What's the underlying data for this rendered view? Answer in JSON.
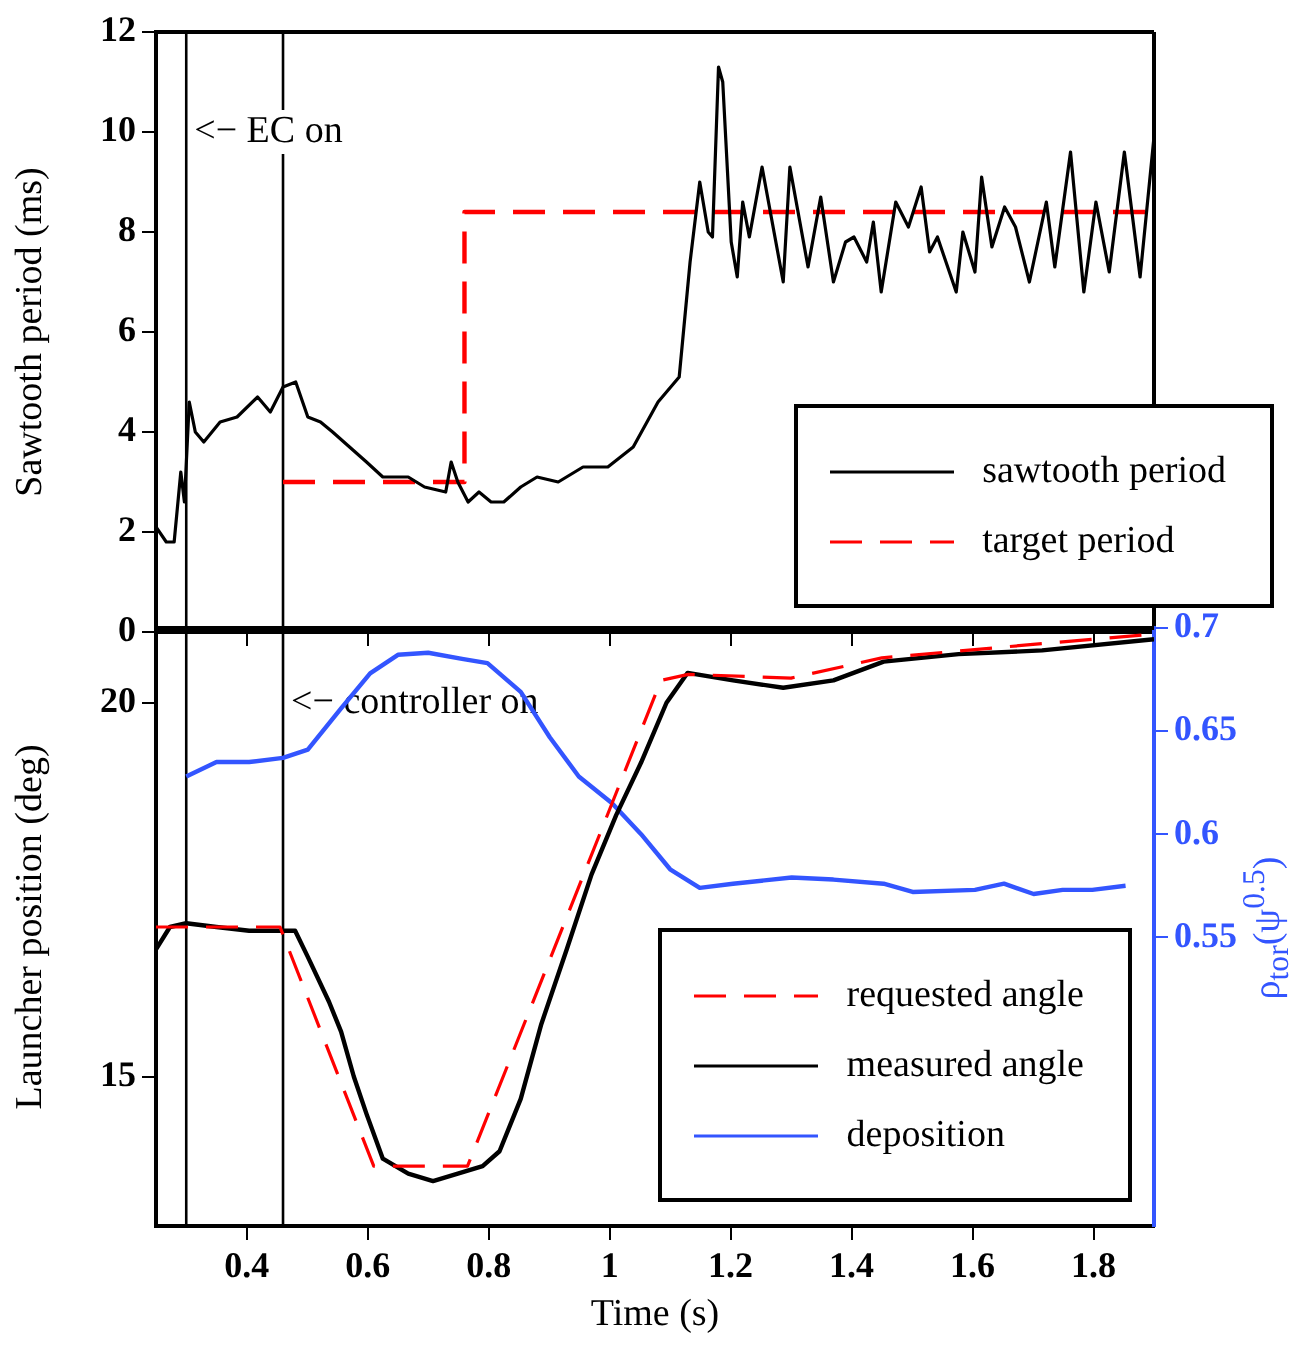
{
  "chart_data": [
    {
      "type": "line",
      "ylabel": "Sawtooth period (ms)",
      "xlim": [
        0.25,
        1.9
      ],
      "xticks": [
        0.4,
        0.6,
        0.8,
        1,
        1.2,
        1.4,
        1.6,
        1.8
      ],
      "ylim": [
        0,
        12
      ],
      "yticks": [
        0,
        2,
        4,
        6,
        8,
        10,
        12
      ],
      "tick_labels": "y",
      "grid": false,
      "legend": "bottom right",
      "marker": "none",
      "ref_lines": [
        {
          "axis": "x",
          "value": 0.3,
          "color": "#000000"
        },
        {
          "axis": "x",
          "value": 0.46,
          "color": "#000000"
        }
      ],
      "annotations": [
        {
          "text": "<− EC on",
          "x": 0.3,
          "y": 10
        }
      ],
      "series": [
        {
          "name": "sawtooth period",
          "color": "#000000",
          "line_style": "solid",
          "x": [
            0.25,
            0.267,
            0.28,
            0.291,
            0.297,
            0.305,
            0.315,
            0.329,
            0.356,
            0.384,
            0.418,
            0.439,
            0.46,
            0.481,
            0.501,
            0.522,
            0.542,
            0.57,
            0.598,
            0.625,
            0.667,
            0.694,
            0.729,
            0.738,
            0.749,
            0.766,
            0.784,
            0.804,
            0.825,
            0.853,
            0.88,
            0.915,
            0.956,
            0.997,
            1.039,
            1.08,
            1.115,
            1.133,
            1.149,
            1.163,
            1.17,
            1.18,
            1.187,
            1.201,
            1.211,
            1.22,
            1.231,
            1.252,
            1.287,
            1.298,
            1.328,
            1.349,
            1.37,
            1.39,
            1.404,
            1.425,
            1.436,
            1.449,
            1.473,
            1.494,
            1.515,
            1.529,
            1.542,
            1.573,
            1.584,
            1.604,
            1.615,
            1.632,
            1.653,
            1.671,
            1.694,
            1.722,
            1.736,
            1.762,
            1.784,
            1.804,
            1.826,
            1.851,
            1.877,
            1.9
          ],
          "values": [
            2.1,
            1.8,
            1.8,
            3.2,
            2.6,
            4.6,
            4.0,
            3.8,
            4.2,
            4.3,
            4.7,
            4.4,
            4.9,
            5.0,
            4.3,
            4.2,
            4.0,
            3.7,
            3.4,
            3.1,
            3.1,
            2.9,
            2.8,
            3.4,
            3.0,
            2.6,
            2.8,
            2.6,
            2.6,
            2.9,
            3.1,
            3.0,
            3.3,
            3.3,
            3.7,
            4.6,
            5.1,
            7.4,
            9.0,
            8.0,
            7.9,
            11.3,
            11.0,
            7.8,
            7.1,
            8.6,
            7.9,
            9.3,
            7.0,
            9.3,
            7.3,
            8.7,
            7.0,
            7.8,
            7.9,
            7.4,
            8.2,
            6.8,
            8.6,
            8.1,
            8.9,
            7.6,
            7.9,
            6.8,
            8.0,
            7.2,
            9.1,
            7.7,
            8.5,
            8.1,
            7.0,
            8.6,
            7.3,
            9.6,
            6.8,
            8.6,
            7.2,
            9.6,
            7.1,
            9.9
          ]
        },
        {
          "name": "target period",
          "type": "step",
          "color": "#ff0000",
          "line_style": "dashed",
          "x": [
            0.46,
            0.76,
            1.9
          ],
          "values": [
            3,
            8.4,
            8.4
          ]
        }
      ]
    },
    {
      "type": "line",
      "xlabel": "Time (s)",
      "ylabel": "Launcher position (deg)",
      "y2label": "ρ$_{tor}$(ψ$^{0.5}$)",
      "xlim": [
        0.25,
        1.9
      ],
      "xticks": [
        0.4,
        0.6,
        0.8,
        1,
        1.2,
        1.4,
        1.6,
        1.8
      ],
      "ylim": [
        13,
        21
      ],
      "yticks": [
        15,
        20
      ],
      "y2lim": [
        0.41,
        0.7
      ],
      "y2ticks": [
        0.55,
        0.6,
        0.65,
        0.7
      ],
      "grid": false,
      "legend": "bottom right",
      "marker": "none",
      "ref_lines": [
        {
          "axis": "x",
          "value": 0.3,
          "color": "#000000"
        },
        {
          "axis": "x",
          "value": 0.46,
          "color": "#000000"
        }
      ],
      "annotations": [
        {
          "text": "<− controller on",
          "x": 0.46,
          "y": 20
        }
      ],
      "series": [
        {
          "name": "requested angle",
          "color": "#ff0000",
          "line_style": "dashed",
          "x": [
            0.25,
            0.455,
            0.61,
            0.765,
            1.085,
            1.13,
            1.3,
            1.45,
            1.7,
            1.9
          ],
          "values": [
            17,
            17,
            13.8,
            13.8,
            20.3,
            20.38,
            20.33,
            20.6,
            20.78,
            20.92
          ]
        },
        {
          "name": "measured angle",
          "color": "#000000",
          "line_style": "solid",
          "x": [
            0.25,
            0.273,
            0.3,
            0.35,
            0.404,
            0.48,
            0.501,
            0.536,
            0.556,
            0.577,
            0.598,
            0.625,
            0.667,
            0.708,
            0.749,
            0.79,
            0.818,
            0.853,
            0.887,
            0.929,
            0.97,
            1.011,
            1.052,
            1.094,
            1.129,
            1.204,
            1.287,
            1.37,
            1.453,
            1.577,
            1.715,
            1.9
          ],
          "values": [
            16.7,
            17.0,
            17.05,
            17.0,
            16.95,
            16.95,
            16.6,
            16.0,
            15.6,
            15.0,
            14.5,
            13.9,
            13.7,
            13.6,
            13.7,
            13.8,
            14.0,
            14.7,
            15.7,
            16.7,
            17.7,
            18.5,
            19.2,
            20.0,
            20.4,
            20.3,
            20.2,
            20.3,
            20.55,
            20.65,
            20.7,
            20.85
          ]
        },
        {
          "name": "deposition",
          "color": "#3355ff",
          "line_style": "solid",
          "axis": "y2",
          "x": [
            0.3,
            0.35,
            0.404,
            0.46,
            0.501,
            0.556,
            0.604,
            0.65,
            0.7,
            0.756,
            0.798,
            0.853,
            0.901,
            0.949,
            1.004,
            1.052,
            1.1,
            1.149,
            1.204,
            1.301,
            1.37,
            1.453,
            1.501,
            1.604,
            1.652,
            1.701,
            1.749,
            1.798,
            1.853
          ],
          "values": [
            0.628,
            0.635,
            0.635,
            0.637,
            0.641,
            0.661,
            0.678,
            0.687,
            0.688,
            0.685,
            0.683,
            0.669,
            0.647,
            0.628,
            0.615,
            0.6,
            0.583,
            0.574,
            0.576,
            0.579,
            0.578,
            0.576,
            0.572,
            0.573,
            0.576,
            0.571,
            0.573,
            0.573,
            0.575
          ]
        }
      ]
    }
  ]
}
